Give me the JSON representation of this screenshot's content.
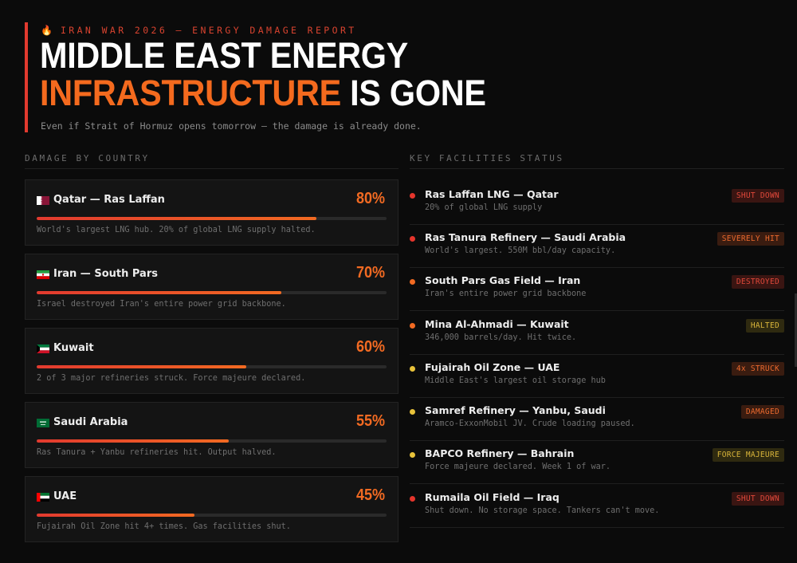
{
  "header": {
    "eyebrow_icon": "fire-icon",
    "eyebrow": "IRAN WAR 2026 — ENERGY DAMAGE REPORT",
    "title_line1": "MIDDLE EAST ENERGY",
    "title_highlight": "INFRASTRUCTURE",
    "title_rest": " IS GONE",
    "subtitle": "Even if Strait of Hormuz opens tomorrow — the damage is already done."
  },
  "colors": {
    "accent_red": "#e23a2f",
    "accent_orange": "#f46a1e",
    "background": "#0b0b0b"
  },
  "damage_section": {
    "heading": "DAMAGE BY COUNTRY",
    "countries": [
      {
        "flag": "qatar-flag-icon",
        "name": "Qatar — Ras Laffan",
        "percent_label": "80%",
        "percent": 80,
        "description": "World's largest LNG hub. 20% of global LNG supply halted."
      },
      {
        "flag": "iran-flag-icon",
        "name": "Iran — South Pars",
        "percent_label": "70%",
        "percent": 70,
        "description": "Israel destroyed Iran's entire power grid backbone."
      },
      {
        "flag": "kuwait-flag-icon",
        "name": "Kuwait",
        "percent_label": "60%",
        "percent": 60,
        "description": "2 of 3 major refineries struck. Force majeure declared."
      },
      {
        "flag": "saudi-arabia-flag-icon",
        "name": "Saudi Arabia",
        "percent_label": "55%",
        "percent": 55,
        "description": "Ras Tanura + Yanbu refineries hit. Output halved."
      },
      {
        "flag": "uae-flag-icon",
        "name": "UAE",
        "percent_label": "45%",
        "percent": 45,
        "description": "Fujairah Oil Zone hit 4+ times. Gas facilities shut."
      }
    ]
  },
  "facilities_section": {
    "heading": "KEY FACILITIES STATUS",
    "facilities": [
      {
        "name": "Ras Laffan LNG — Qatar",
        "description": "20% of global LNG supply",
        "status": "SHUT DOWN",
        "dot_color": "#e5352c",
        "badge_bg": "#3a1512",
        "badge_fg": "#e0483a"
      },
      {
        "name": "Ras Tanura Refinery — Saudi Arabia",
        "description": "World's largest. 550M bbl/day capacity.",
        "status": "SEVERELY HIT",
        "dot_color": "#e5352c",
        "badge_bg": "#3a1c10",
        "badge_fg": "#ec6a2e"
      },
      {
        "name": "South Pars Gas Field — Iran",
        "description": "Iran's entire power grid backbone",
        "status": "DESTROYED",
        "dot_color": "#f26a22",
        "badge_bg": "#3a1512",
        "badge_fg": "#e0483a"
      },
      {
        "name": "Mina Al-Ahmadi — Kuwait",
        "description": "346,000 barrels/day. Hit twice.",
        "status": "HALTED",
        "dot_color": "#f26a22",
        "badge_bg": "#2f2a10",
        "badge_fg": "#d9b53a"
      },
      {
        "name": "Fujairah Oil Zone — UAE",
        "description": "Middle East's largest oil storage hub",
        "status": "4x STRUCK",
        "dot_color": "#e8c23a",
        "badge_bg": "#3a1c10",
        "badge_fg": "#ec6a2e"
      },
      {
        "name": "Samref Refinery — Yanbu, Saudi",
        "description": "Aramco-ExxonMobil JV. Crude loading paused.",
        "status": "DAMAGED",
        "dot_color": "#e8c23a",
        "badge_bg": "#3a1c10",
        "badge_fg": "#ec6a2e"
      },
      {
        "name": "BAPCO Refinery — Bahrain",
        "description": "Force majeure declared. Week 1 of war.",
        "status": "FORCE MAJEURE",
        "dot_color": "#e8c23a",
        "badge_bg": "#2f2a10",
        "badge_fg": "#d9b53a"
      },
      {
        "name": "Rumaila Oil Field — Iraq",
        "description": "Shut down. No storage space. Tankers can't move.",
        "status": "SHUT DOWN",
        "dot_color": "#e5352c",
        "badge_bg": "#3a1512",
        "badge_fg": "#e0483a"
      }
    ]
  }
}
